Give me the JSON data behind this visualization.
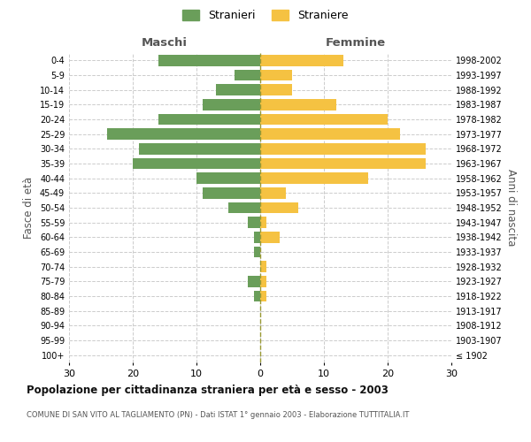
{
  "age_groups": [
    "100+",
    "95-99",
    "90-94",
    "85-89",
    "80-84",
    "75-79",
    "70-74",
    "65-69",
    "60-64",
    "55-59",
    "50-54",
    "45-49",
    "40-44",
    "35-39",
    "30-34",
    "25-29",
    "20-24",
    "15-19",
    "10-14",
    "5-9",
    "0-4"
  ],
  "birth_years": [
    "≤ 1902",
    "1903-1907",
    "1908-1912",
    "1913-1917",
    "1918-1922",
    "1923-1927",
    "1928-1932",
    "1933-1937",
    "1938-1942",
    "1943-1947",
    "1948-1952",
    "1953-1957",
    "1958-1962",
    "1963-1967",
    "1968-1972",
    "1973-1977",
    "1978-1982",
    "1983-1987",
    "1988-1992",
    "1993-1997",
    "1998-2002"
  ],
  "maschi": [
    0,
    0,
    0,
    0,
    1,
    2,
    0,
    1,
    1,
    2,
    5,
    9,
    10,
    20,
    19,
    24,
    16,
    9,
    7,
    4,
    16
  ],
  "femmine": [
    0,
    0,
    0,
    0,
    1,
    1,
    1,
    0,
    3,
    1,
    6,
    4,
    17,
    26,
    26,
    22,
    20,
    12,
    5,
    5,
    13
  ],
  "maschi_color": "#6a9e5a",
  "femmine_color": "#f5c242",
  "background_color": "#ffffff",
  "grid_color": "#cccccc",
  "title": "Popolazione per cittadinanza straniera per età e sesso - 2003",
  "subtitle": "COMUNE DI SAN VITO AL TAGLIAMENTO (PN) - Dati ISTAT 1° gennaio 2003 - Elaborazione TUTTITALIA.IT",
  "xlabel_left": "Maschi",
  "xlabel_right": "Femmine",
  "ylabel_left": "Fasce di età",
  "ylabel_right": "Anni di nascita",
  "legend_maschi": "Stranieri",
  "legend_femmine": "Straniere",
  "xlim": 30
}
